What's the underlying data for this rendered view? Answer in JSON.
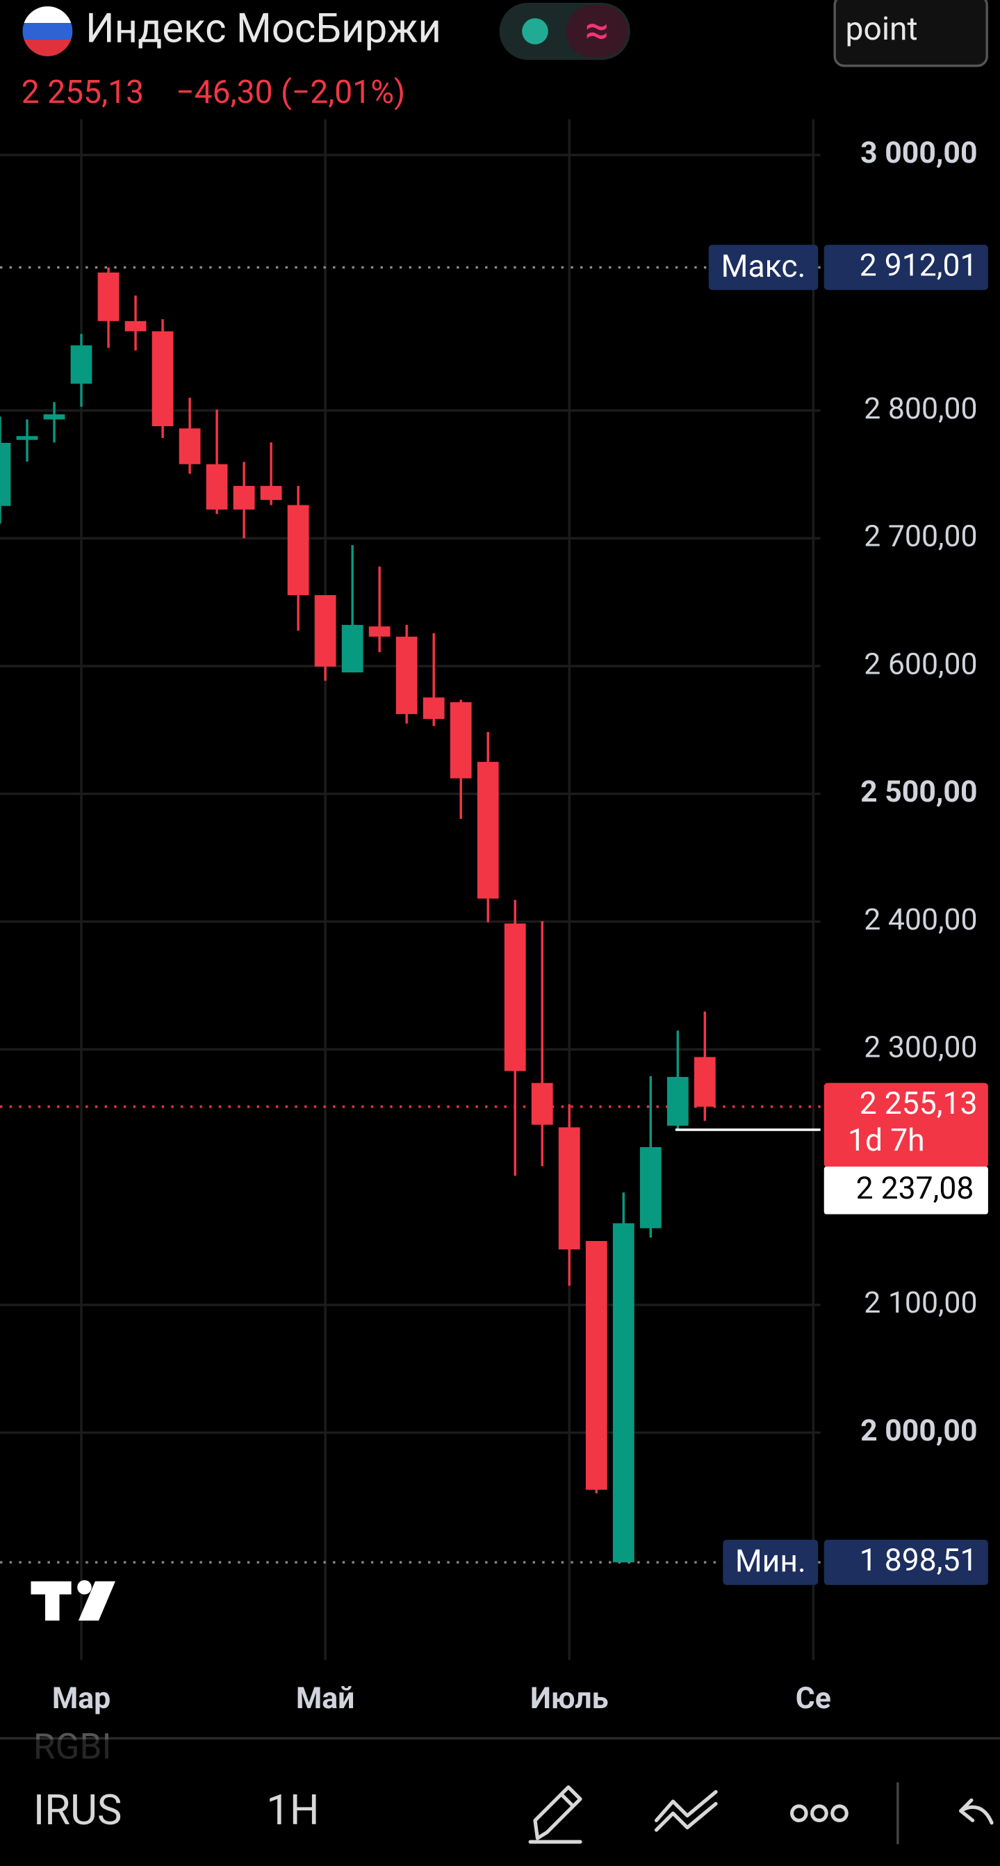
{
  "header": {
    "title": "Индекс МосБиржи",
    "interval_button": "point",
    "price": "2 255,13",
    "change": "−46,30 (−2,01%)"
  },
  "chart_data": {
    "type": "candlestick",
    "open": [
      2725.3,
      2777,
      2793,
      2821,
      2908,
      2870,
      2862,
      2786,
      2758,
      2741,
      2741,
      2726,
      2655.5,
      2595,
      2631,
      2623,
      2575.4,
      2571.7,
      2525,
      2398.5,
      2273.7,
      2239,
      2150,
      1898.51,
      2160,
      2240.2,
      2294
    ],
    "high": [
      2795.2,
      2793,
      2806.6,
      2860,
      2912.01,
      2890,
      2871.5,
      2810,
      2800.7,
      2759.8,
      2775,
      2741,
      2655.5,
      2694.6,
      2677.8,
      2632.2,
      2625.7,
      2573.6,
      2548.4,
      2417,
      2400.4,
      2257,
      2150,
      2188,
      2279,
      2314.7,
      2329.6
    ],
    "low": [
      2711.4,
      2760,
      2775,
      2803,
      2849,
      2847,
      2778.4,
      2750.5,
      2719,
      2700,
      2726,
      2627.6,
      2588.5,
      2595,
      2610.8,
      2555,
      2553,
      2480.4,
      2399.4,
      2201,
      2208.6,
      2115,
      1952.5,
      1898.51,
      2152.7,
      2236.5,
      2244
    ],
    "close": [
      2774.7,
      2780,
      2797,
      2851,
      2870,
      2862,
      2787.7,
      2758,
      2722.5,
      2722.5,
      2730,
      2655.5,
      2599.6,
      2632.2,
      2623,
      2562.4,
      2558.6,
      2512.1,
      2418,
      2283,
      2241,
      2143.4,
      1955.3,
      2163.9,
      2223.5,
      2278.4,
      2255.13
    ],
    "up_color": "#089981",
    "down_color": "#f23645",
    "ylim": [
      1822.2,
      3027.9
    ],
    "yticks": [
      {
        "value": 3000,
        "label": "3 000,00"
      },
      {
        "value": 2800,
        "label": "2 800,00"
      },
      {
        "value": 2700,
        "label": "2 700,00"
      },
      {
        "value": 2600,
        "label": "2 600,00"
      },
      {
        "value": 2500,
        "label": "2 500,00"
      },
      {
        "value": 2400,
        "label": "2 400,00"
      },
      {
        "value": 2300,
        "label": "2 300,00"
      },
      {
        "value": 2100,
        "label": "2 100,00"
      },
      {
        "value": 2000,
        "label": "2 000,00"
      }
    ],
    "xticks": [
      {
        "value": 3,
        "label": "Мар"
      },
      {
        "value": 12,
        "label": "Май"
      },
      {
        "value": 21,
        "label": "Июль"
      },
      {
        "value": 30,
        "label": "Се"
      }
    ],
    "grid": true,
    "max_marker": {
      "label": "Макс.",
      "value": 2912.01,
      "value_label": "2 912,01"
    },
    "min_marker": {
      "label": "Мин.",
      "value": 1898.51,
      "value_label": "1 898,51"
    },
    "last_marker": {
      "value": 2255.13,
      "value_label": "2 255,13",
      "countdown": "1d 7h"
    },
    "line_marker": {
      "value": 2237.08,
      "value_label": "2 237,08"
    }
  },
  "toolbar": {
    "faded_symbol": "RGBI",
    "symbol": "IRUS",
    "interval": "1H"
  }
}
